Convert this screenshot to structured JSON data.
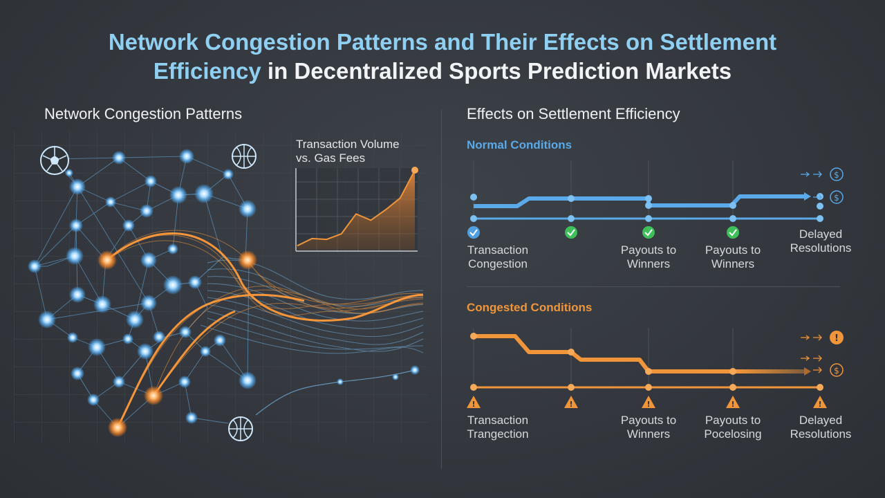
{
  "title": {
    "line1": "Network Congestion Patterns and Their Effects on Settlement",
    "line2_highlight": "Efficiency",
    "line2_rest": " in Decentralized Sports Prediction Markets"
  },
  "left_panel": {
    "heading": "Network Congestion Patterns",
    "chart_title_line1": "Transaction Volume",
    "chart_title_line2": "vs. Gas Fees",
    "icons": [
      "soccer-ball-icon",
      "basketball-icon",
      "basketball-icon"
    ]
  },
  "chart_data": {
    "type": "area",
    "title": "Transaction Volume vs. Gas Fees",
    "x": [
      0,
      1,
      2,
      3,
      4,
      5,
      6,
      7,
      8
    ],
    "values": [
      0.05,
      0.14,
      0.13,
      0.2,
      0.45,
      0.37,
      0.5,
      0.65,
      1.0
    ],
    "color": "#f0953a"
  },
  "right_panel": {
    "heading": "Effects on Settlement Efficiency",
    "normal": {
      "label": "Normal Conditions",
      "color": "#5aa9e8",
      "status_icons": [
        "check-icon",
        "check-icon",
        "check-icon",
        "check-icon"
      ],
      "stages": [
        {
          "line1": "Transaction",
          "line2": "Congestion"
        },
        {
          "line1": "",
          "line2": ""
        },
        {
          "line1": "Payouts to",
          "line2": "Winners"
        },
        {
          "line1": "Payouts to",
          "line2": "Winners"
        },
        {
          "line1": "Delayed",
          "line2": "Resolutions"
        }
      ],
      "end_icons": [
        "dollar-icon",
        "dollar-icon"
      ]
    },
    "congested": {
      "label": "Congested Conditions",
      "color": "#f0953a",
      "status_icons": [
        "warning-icon",
        "warning-icon",
        "warning-icon",
        "warning-icon",
        "warning-icon"
      ],
      "stages": [
        {
          "line1": "Transaction",
          "line2": "Trangection"
        },
        {
          "line1": "",
          "line2": ""
        },
        {
          "line1": "Payouts to",
          "line2": "Winners"
        },
        {
          "line1": "Payouts to",
          "line2": "Pocelosing"
        },
        {
          "line1": "Delayed",
          "line2": "Resolutions"
        }
      ],
      "end_icons": [
        "warning-icon",
        "dollar-icon"
      ]
    }
  },
  "colors": {
    "blue_accent": "#5aa9e8",
    "orange_accent": "#f0953a",
    "check_green": "#3fbf5a",
    "background": "#34383e"
  }
}
